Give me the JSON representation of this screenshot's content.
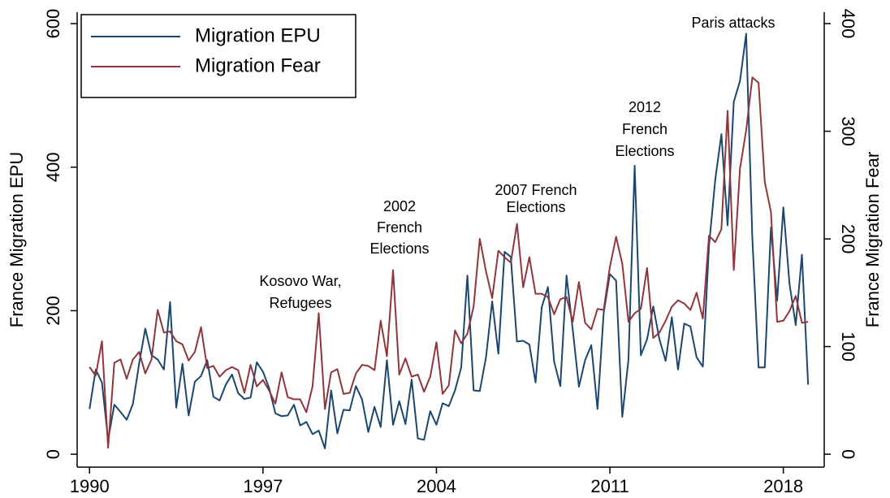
{
  "chart_data": {
    "type": "line",
    "y_label": "France Migration EPU",
    "y2_label": "France Migration Fear",
    "x": [
      1990,
      1990.25,
      1990.5,
      1990.75,
      1991,
      1991.25,
      1991.5,
      1991.75,
      1992,
      1992.25,
      1992.5,
      1992.75,
      1993,
      1993.25,
      1993.5,
      1993.75,
      1994,
      1994.25,
      1994.5,
      1994.75,
      1995,
      1995.25,
      1995.5,
      1995.75,
      1996,
      1996.25,
      1996.5,
      1996.75,
      1997,
      1997.25,
      1997.5,
      1997.75,
      1998,
      1998.25,
      1998.5,
      1998.75,
      1999,
      1999.25,
      1999.5,
      1999.75,
      2000,
      2000.25,
      2000.5,
      2000.75,
      2001,
      2001.25,
      2001.5,
      2001.75,
      2002,
      2002.25,
      2002.5,
      2002.75,
      2003,
      2003.25,
      2003.5,
      2003.75,
      2004,
      2004.25,
      2004.5,
      2004.75,
      2005,
      2005.25,
      2005.5,
      2005.75,
      2006,
      2006.25,
      2006.5,
      2006.75,
      2007,
      2007.25,
      2007.5,
      2007.75,
      2008,
      2008.25,
      2008.5,
      2008.75,
      2009,
      2009.25,
      2009.5,
      2009.75,
      2010,
      2010.25,
      2010.5,
      2010.75,
      2011,
      2011.25,
      2011.5,
      2011.75,
      2012,
      2012.25,
      2012.5,
      2012.75,
      2013,
      2013.25,
      2013.5,
      2013.75,
      2014,
      2014.25,
      2014.5,
      2014.75,
      2015,
      2015.25,
      2015.5,
      2015.75,
      2016,
      2016.25,
      2016.5,
      2016.75,
      2017,
      2017.25,
      2017.5,
      2017.75,
      2018,
      2018.25,
      2018.5,
      2018.75,
      2019
    ],
    "series": [
      {
        "name": "Migration EPU",
        "color": "#1a476f",
        "axis": "y",
        "values": [
          63,
          118,
          100,
          20,
          69,
          59,
          48,
          70,
          126,
          175,
          138,
          132,
          118,
          212,
          65,
          126,
          54,
          101,
          109,
          131,
          80,
          75,
          97,
          111,
          85,
          77,
          79,
          128,
          115,
          92,
          57,
          53,
          54,
          69,
          40,
          45,
          28,
          33,
          8,
          89,
          29,
          62,
          61,
          95,
          76,
          31,
          66,
          38,
          131,
          41,
          74,
          42,
          104,
          22,
          20,
          60,
          41,
          71,
          67,
          89,
          121,
          249,
          89,
          88,
          135,
          213,
          140,
          282,
          275,
          157,
          158,
          153,
          100,
          205,
          233,
          129,
          95,
          249,
          174,
          94,
          131,
          152,
          63,
          197,
          251,
          242,
          52,
          132,
          402,
          138,
          160,
          206,
          160,
          130,
          191,
          118,
          182,
          178,
          135,
          122,
          290,
          382,
          446,
          319,
          491,
          520,
          586,
          300,
          121,
          121,
          316,
          214,
          344,
          237,
          180,
          278,
          97
        ]
      },
      {
        "name": "Migration Fear",
        "color": "#90353b",
        "axis": "y2",
        "values": [
          81,
          73,
          105,
          6,
          85,
          88,
          70,
          88,
          95,
          75,
          88,
          134,
          113,
          114,
          105,
          102,
          87,
          95,
          118,
          80,
          82,
          72,
          78,
          81,
          78,
          57,
          83,
          63,
          69,
          59,
          47,
          76,
          53,
          51,
          51,
          39,
          63,
          131,
          42,
          76,
          79,
          56,
          57,
          75,
          83,
          82,
          78,
          124,
          91,
          171,
          74,
          89,
          72,
          74,
          58,
          72,
          104,
          56,
          64,
          115,
          103,
          112,
          137,
          200,
          170,
          145,
          189,
          183,
          178,
          214,
          155,
          183,
          149,
          149,
          146,
          130,
          144,
          146,
          123,
          160,
          122,
          116,
          135,
          134,
          174,
          202,
          177,
          123,
          131,
          135,
          173,
          108,
          113,
          124,
          137,
          143,
          140,
          134,
          150,
          126,
          203,
          197,
          209,
          319,
          171,
          265,
          301,
          350,
          345,
          253,
          225,
          123,
          124,
          133,
          147,
          122,
          123
        ]
      }
    ],
    "xlim": [
      1989.5,
      2019.65
    ],
    "xticks": [
      1990,
      1997,
      2004,
      2011,
      2018
    ],
    "ylim": [
      -18,
      616
    ],
    "yticks": [
      0,
      200,
      400,
      600
    ],
    "y2lim": [
      -12,
      410.6
    ],
    "y2ticks": [
      0,
      100,
      200,
      300,
      400
    ],
    "legend": "top-left",
    "annotations": [
      {
        "lines": [
          "Kosovo War,",
          "Refugees"
        ]
      },
      {
        "lines": [
          "2002",
          "French",
          "Elections"
        ]
      },
      {
        "lines": [
          "2007 French",
          "Elections"
        ]
      },
      {
        "lines": [
          "2012",
          "French",
          "Elections"
        ]
      },
      {
        "lines": [
          "Paris attacks"
        ]
      }
    ]
  }
}
